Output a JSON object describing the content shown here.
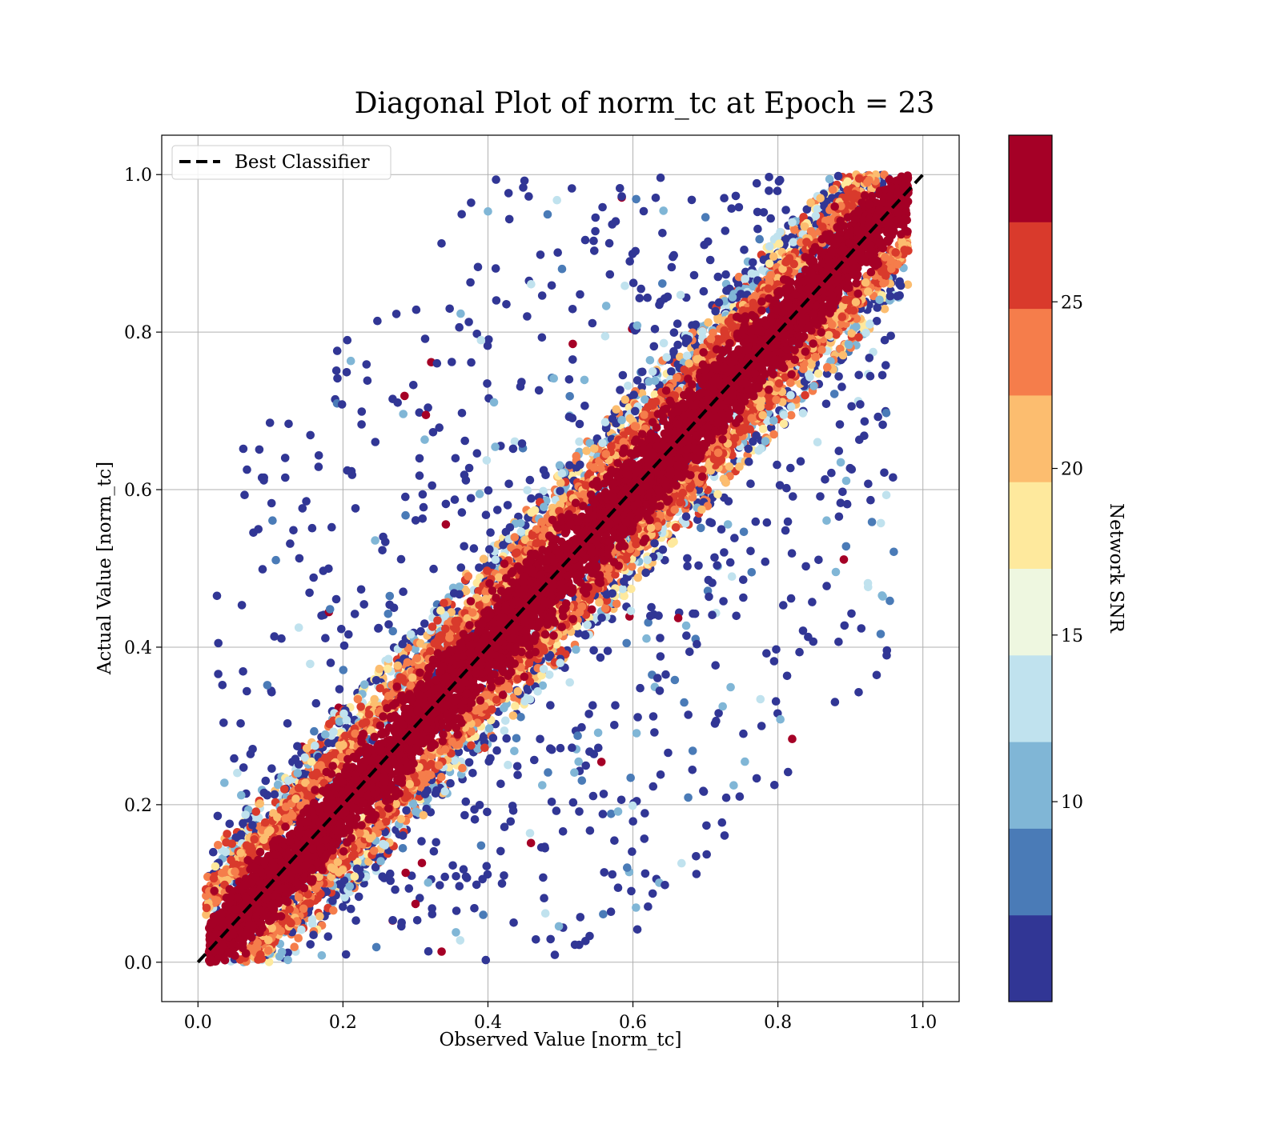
{
  "chart_data": {
    "type": "scatter",
    "title": "Diagonal Plot of norm_tc at Epoch = 23",
    "xlabel": "Observed Value [norm_tc]",
    "ylabel": "Actual Value [norm_tc]",
    "xlim": [
      -0.05,
      1.05
    ],
    "ylim": [
      -0.05,
      1.05
    ],
    "x_ticks": [
      "0.0",
      "0.2",
      "0.4",
      "0.6",
      "0.8",
      "1.0"
    ],
    "y_ticks": [
      "0.0",
      "0.2",
      "0.4",
      "0.6",
      "0.8",
      "1.0"
    ],
    "grid": true,
    "legend": {
      "position": "upper-left",
      "entries": [
        {
          "label": "Best Classifier",
          "style": "dashed",
          "color": "#000000"
        }
      ]
    },
    "reference_line": {
      "x": [
        0.0,
        1.0
      ],
      "y": [
        0.0,
        1.0
      ]
    },
    "colorbar": {
      "label": "Network SNR",
      "range": [
        4,
        30
      ],
      "ticks": [
        "10",
        "15",
        "20",
        "25"
      ],
      "tick_values": [
        10,
        15,
        20,
        25
      ],
      "colors": [
        "#313695",
        "#4a7bb7",
        "#80b6d6",
        "#c0e2ee",
        "#eef7e0",
        "#fee99d",
        "#fcbd6f",
        "#f57d4b",
        "#d93a2c",
        "#a50026"
      ]
    },
    "series_description_colors": {
      "high_snr": "#a50026",
      "mid_snr": "#f57d4b",
      "low_snr": "#313695"
    }
  }
}
